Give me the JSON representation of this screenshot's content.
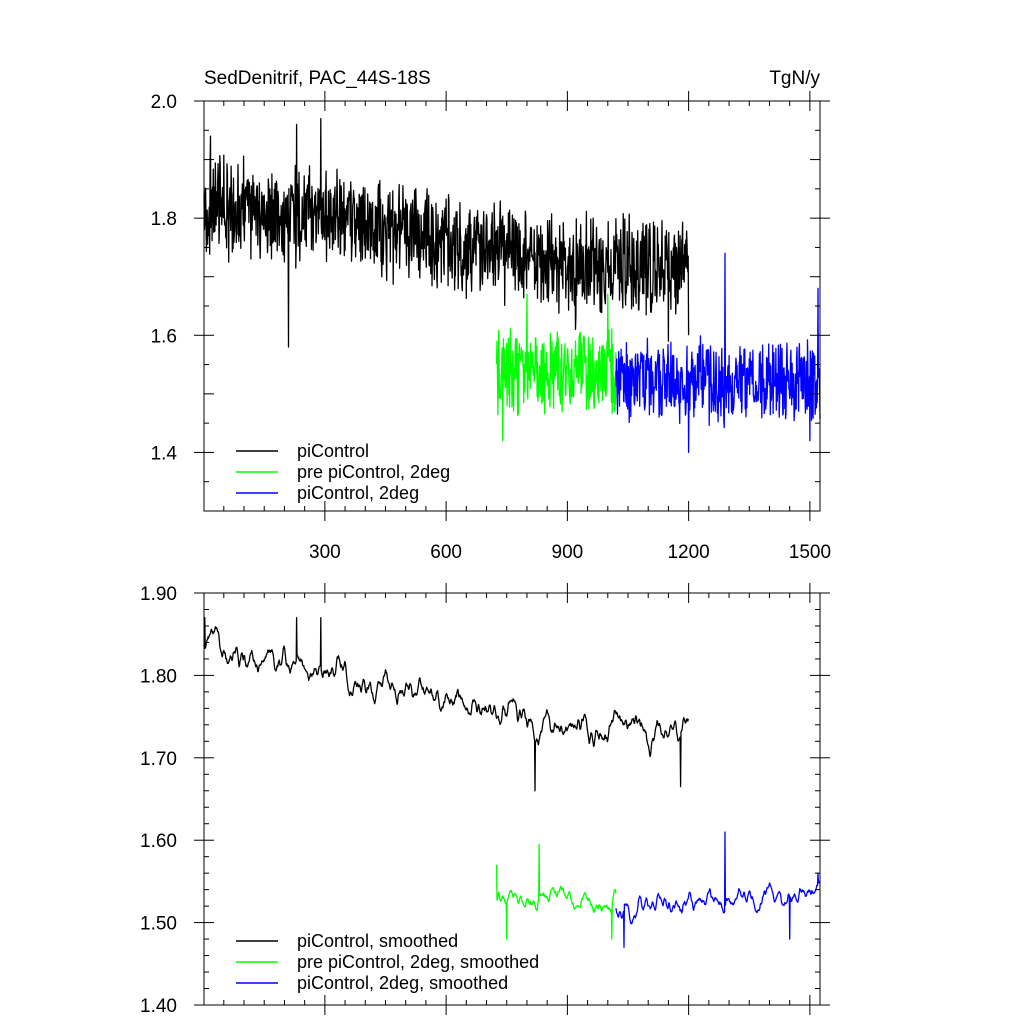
{
  "chart_data": [
    {
      "type": "line",
      "title": "SedDenitrif, PAC_44S-18S",
      "units": "TgN/y",
      "xlabel": "",
      "ylabel": "",
      "xlim": [
        1,
        1525
      ],
      "ylim": [
        1.3,
        2.0
      ],
      "x_ticks": [
        300,
        600,
        900,
        1200,
        1500
      ],
      "x_tick_labels": [
        "300",
        "600",
        "900",
        "1200",
        "1500"
      ],
      "y_ticks": [
        1.4,
        1.6,
        1.8,
        2.0
      ],
      "y_tick_labels": [
        "1.4",
        "1.6",
        "1.8",
        "2.0"
      ],
      "legend_position": "bottom-left",
      "series": [
        {
          "name": "piControl",
          "color": "#000000",
          "x_start": 1,
          "x_end": 1200,
          "trend": [
            [
              1,
              1.82
            ],
            [
              300,
              1.8
            ],
            [
              600,
              1.76
            ],
            [
              900,
              1.72
            ],
            [
              1200,
              1.72
            ]
          ],
          "noise_amplitude": 0.07,
          "peaks": [
            [
              17,
              1.94
            ],
            [
              210,
              1.58
            ],
            [
              230,
              1.96
            ],
            [
              290,
              1.97
            ],
            [
              920,
              1.61
            ],
            [
              1150,
              1.59
            ],
            [
              1200,
              1.6
            ]
          ]
        },
        {
          "name": "pre piControl, 2deg",
          "color": "#00ff00",
          "x_start": 725,
          "x_end": 1020,
          "trend": [
            [
              725,
              1.54
            ],
            [
              1020,
              1.54
            ]
          ],
          "noise_amplitude": 0.06,
          "peaks": [
            [
              740,
              1.42
            ],
            [
              800,
              1.67
            ],
            [
              1000,
              1.67
            ]
          ]
        },
        {
          "name": "piControl, 2deg",
          "color": "#0000ff",
          "x_start": 1020,
          "x_end": 1525,
          "trend": [
            [
              1020,
              1.52
            ],
            [
              1525,
              1.52
            ]
          ],
          "noise_amplitude": 0.06,
          "peaks": [
            [
              1290,
              1.74
            ],
            [
              1200,
              1.4
            ],
            [
              1500,
              1.42
            ],
            [
              1520,
              1.68
            ]
          ]
        }
      ]
    },
    {
      "type": "line",
      "title": "",
      "xlabel": "",
      "ylabel": "",
      "xlim": [
        1,
        1525
      ],
      "ylim": [
        1.4,
        1.9
      ],
      "x_ticks": [
        300,
        600,
        900,
        1200,
        1500
      ],
      "x_tick_labels": [],
      "y_ticks": [
        1.4,
        1.5,
        1.6,
        1.7,
        1.8,
        1.9
      ],
      "y_tick_labels": [
        "1.40",
        "1.50",
        "1.60",
        "1.70",
        "1.80",
        "1.90"
      ],
      "legend_position": "bottom-left",
      "series": [
        {
          "name": "piControl, smoothed",
          "color": "#000000",
          "x_start": 1,
          "x_end": 1200,
          "trend": [
            [
              1,
              1.84
            ],
            [
              300,
              1.81
            ],
            [
              600,
              1.77
            ],
            [
              900,
              1.74
            ],
            [
              1200,
              1.73
            ]
          ],
          "noise_amplitude": 0.025,
          "peaks": [
            [
              3,
              1.87
            ],
            [
              230,
              1.87
            ],
            [
              290,
              1.87
            ],
            [
              820,
              1.66
            ],
            [
              1180,
              1.665
            ]
          ]
        },
        {
          "name": "pre piControl, 2deg, smoothed",
          "color": "#00ff00",
          "x_start": 725,
          "x_end": 1020,
          "trend": [
            [
              725,
              1.53
            ],
            [
              1020,
              1.53
            ]
          ],
          "noise_amplitude": 0.02,
          "peaks": [
            [
              725,
              1.57
            ],
            [
              750,
              1.48
            ],
            [
              830,
              1.595
            ],
            [
              1010,
              1.48
            ]
          ]
        },
        {
          "name": "piControl, 2deg, smoothed",
          "color": "#0000ff",
          "x_start": 1020,
          "x_end": 1525,
          "trend": [
            [
              1020,
              1.52
            ],
            [
              1525,
              1.53
            ]
          ],
          "noise_amplitude": 0.02,
          "peaks": [
            [
              1040,
              1.47
            ],
            [
              1290,
              1.61
            ],
            [
              1450,
              1.48
            ],
            [
              1520,
              1.56
            ]
          ]
        }
      ]
    }
  ]
}
